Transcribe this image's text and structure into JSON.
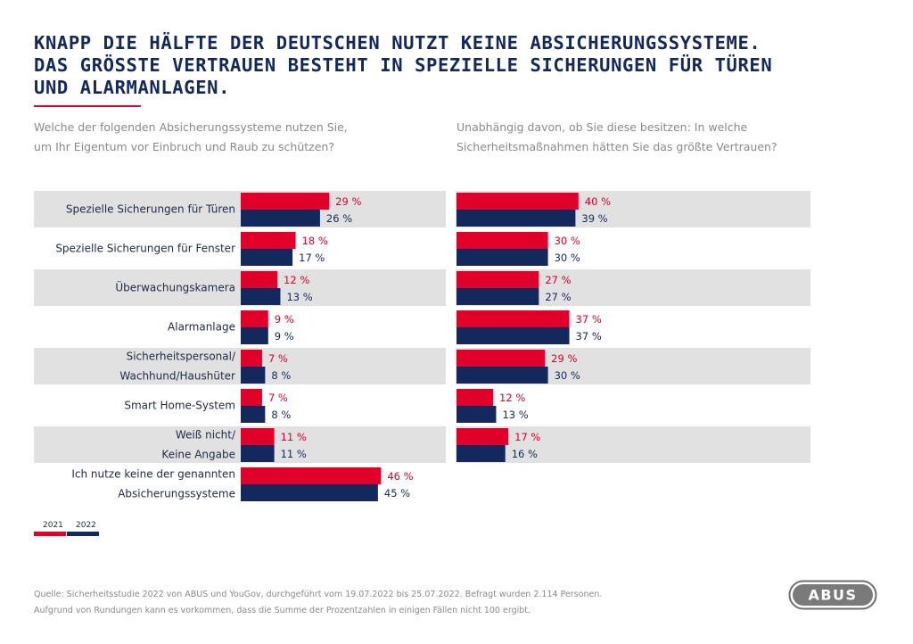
{
  "title_lines": [
    "KNAPP DIE HÄLFTE DER DEUTSCHEN NUTZT KEINE ABSICHERUNGSSYSTEME.",
    "DAS GRÖSSTE VERTRAUEN BESTEHT IN SPEZIELLE SICHERUNGEN FÜR TÜREN",
    "UND ALARMANLAGEN."
  ],
  "question_left": [
    "Welche der folgenden Absicherungssysteme nutzen Sie,",
    "um Ihr Eigentum vor Einbruch und Raub zu schützen?"
  ],
  "question_right": [
    "Unabhängig davon, ob Sie diese besitzen: In welche",
    "Sicherheitsmaßnahmen hätten Sie das größte Vertrauen?"
  ],
  "colors": {
    "y2021": "#e0002a",
    "y2022": "#13285c",
    "band": "#e1e1e1",
    "title": "#13285c"
  },
  "chart_data": [
    {
      "type": "bar",
      "orientation": "horizontal",
      "categories": [
        [
          "Spezielle Sicherungen für Türen"
        ],
        [
          "Spezielle Sicherungen für Fenster"
        ],
        [
          "Überwachungskamera"
        ],
        [
          "Alarmanlage"
        ],
        [
          "Sicherheitspersonal/",
          "Wachhund/Haushüter"
        ],
        [
          "Smart Home-System"
        ],
        [
          "Weiß nicht/",
          "Keine Angabe"
        ],
        [
          "Ich nutze keine der genannten",
          "Absicherungssysteme"
        ]
      ],
      "series": [
        {
          "name": "2021",
          "values": [
            29,
            18,
            12,
            9,
            7,
            7,
            11,
            46
          ],
          "labels": [
            "29 %",
            "18 %",
            "12 %",
            "9 %",
            "7 %",
            "7 %",
            "11 %",
            "46 %"
          ]
        },
        {
          "name": "2022",
          "values": [
            26,
            17,
            13,
            9,
            8,
            8,
            11,
            45
          ],
          "labels": [
            "26 %",
            "17 %",
            "13 %",
            "9 %",
            "8 %",
            "8 %",
            "11 %",
            "45 %"
          ]
        }
      ],
      "xlim": [
        0,
        100
      ],
      "grid": false
    },
    {
      "type": "bar",
      "orientation": "horizontal",
      "series": [
        {
          "name": "2021",
          "values": [
            40,
            30,
            27,
            37,
            29,
            12,
            17
          ],
          "labels": [
            "40 %",
            "30 %",
            "27 %",
            "37 %",
            "29 %",
            "12 %",
            "17 %"
          ]
        },
        {
          "name": "2022",
          "values": [
            39,
            30,
            27,
            37,
            30,
            13,
            16
          ],
          "labels": [
            "39 %",
            "30 %",
            "27 %",
            "37 %",
            "30 %",
            "13 %",
            "16 %"
          ]
        }
      ],
      "xlim": [
        0,
        100
      ],
      "grid": false
    }
  ],
  "legend": [
    "2021",
    "2022"
  ],
  "source_lines": [
    "Quelle: Sicherheitsstudie 2022 von ABUS und YouGov, durchgeführt vom 19.07.2022 bis 25.07.2022. Befragt wurden 2.114 Personen.",
    "Aufgrund von Rundungen kann es vorkommen, dass die Summe der Prozentzahlen in einigen Fällen nicht 100 ergibt."
  ],
  "logo_text": "ABUS"
}
